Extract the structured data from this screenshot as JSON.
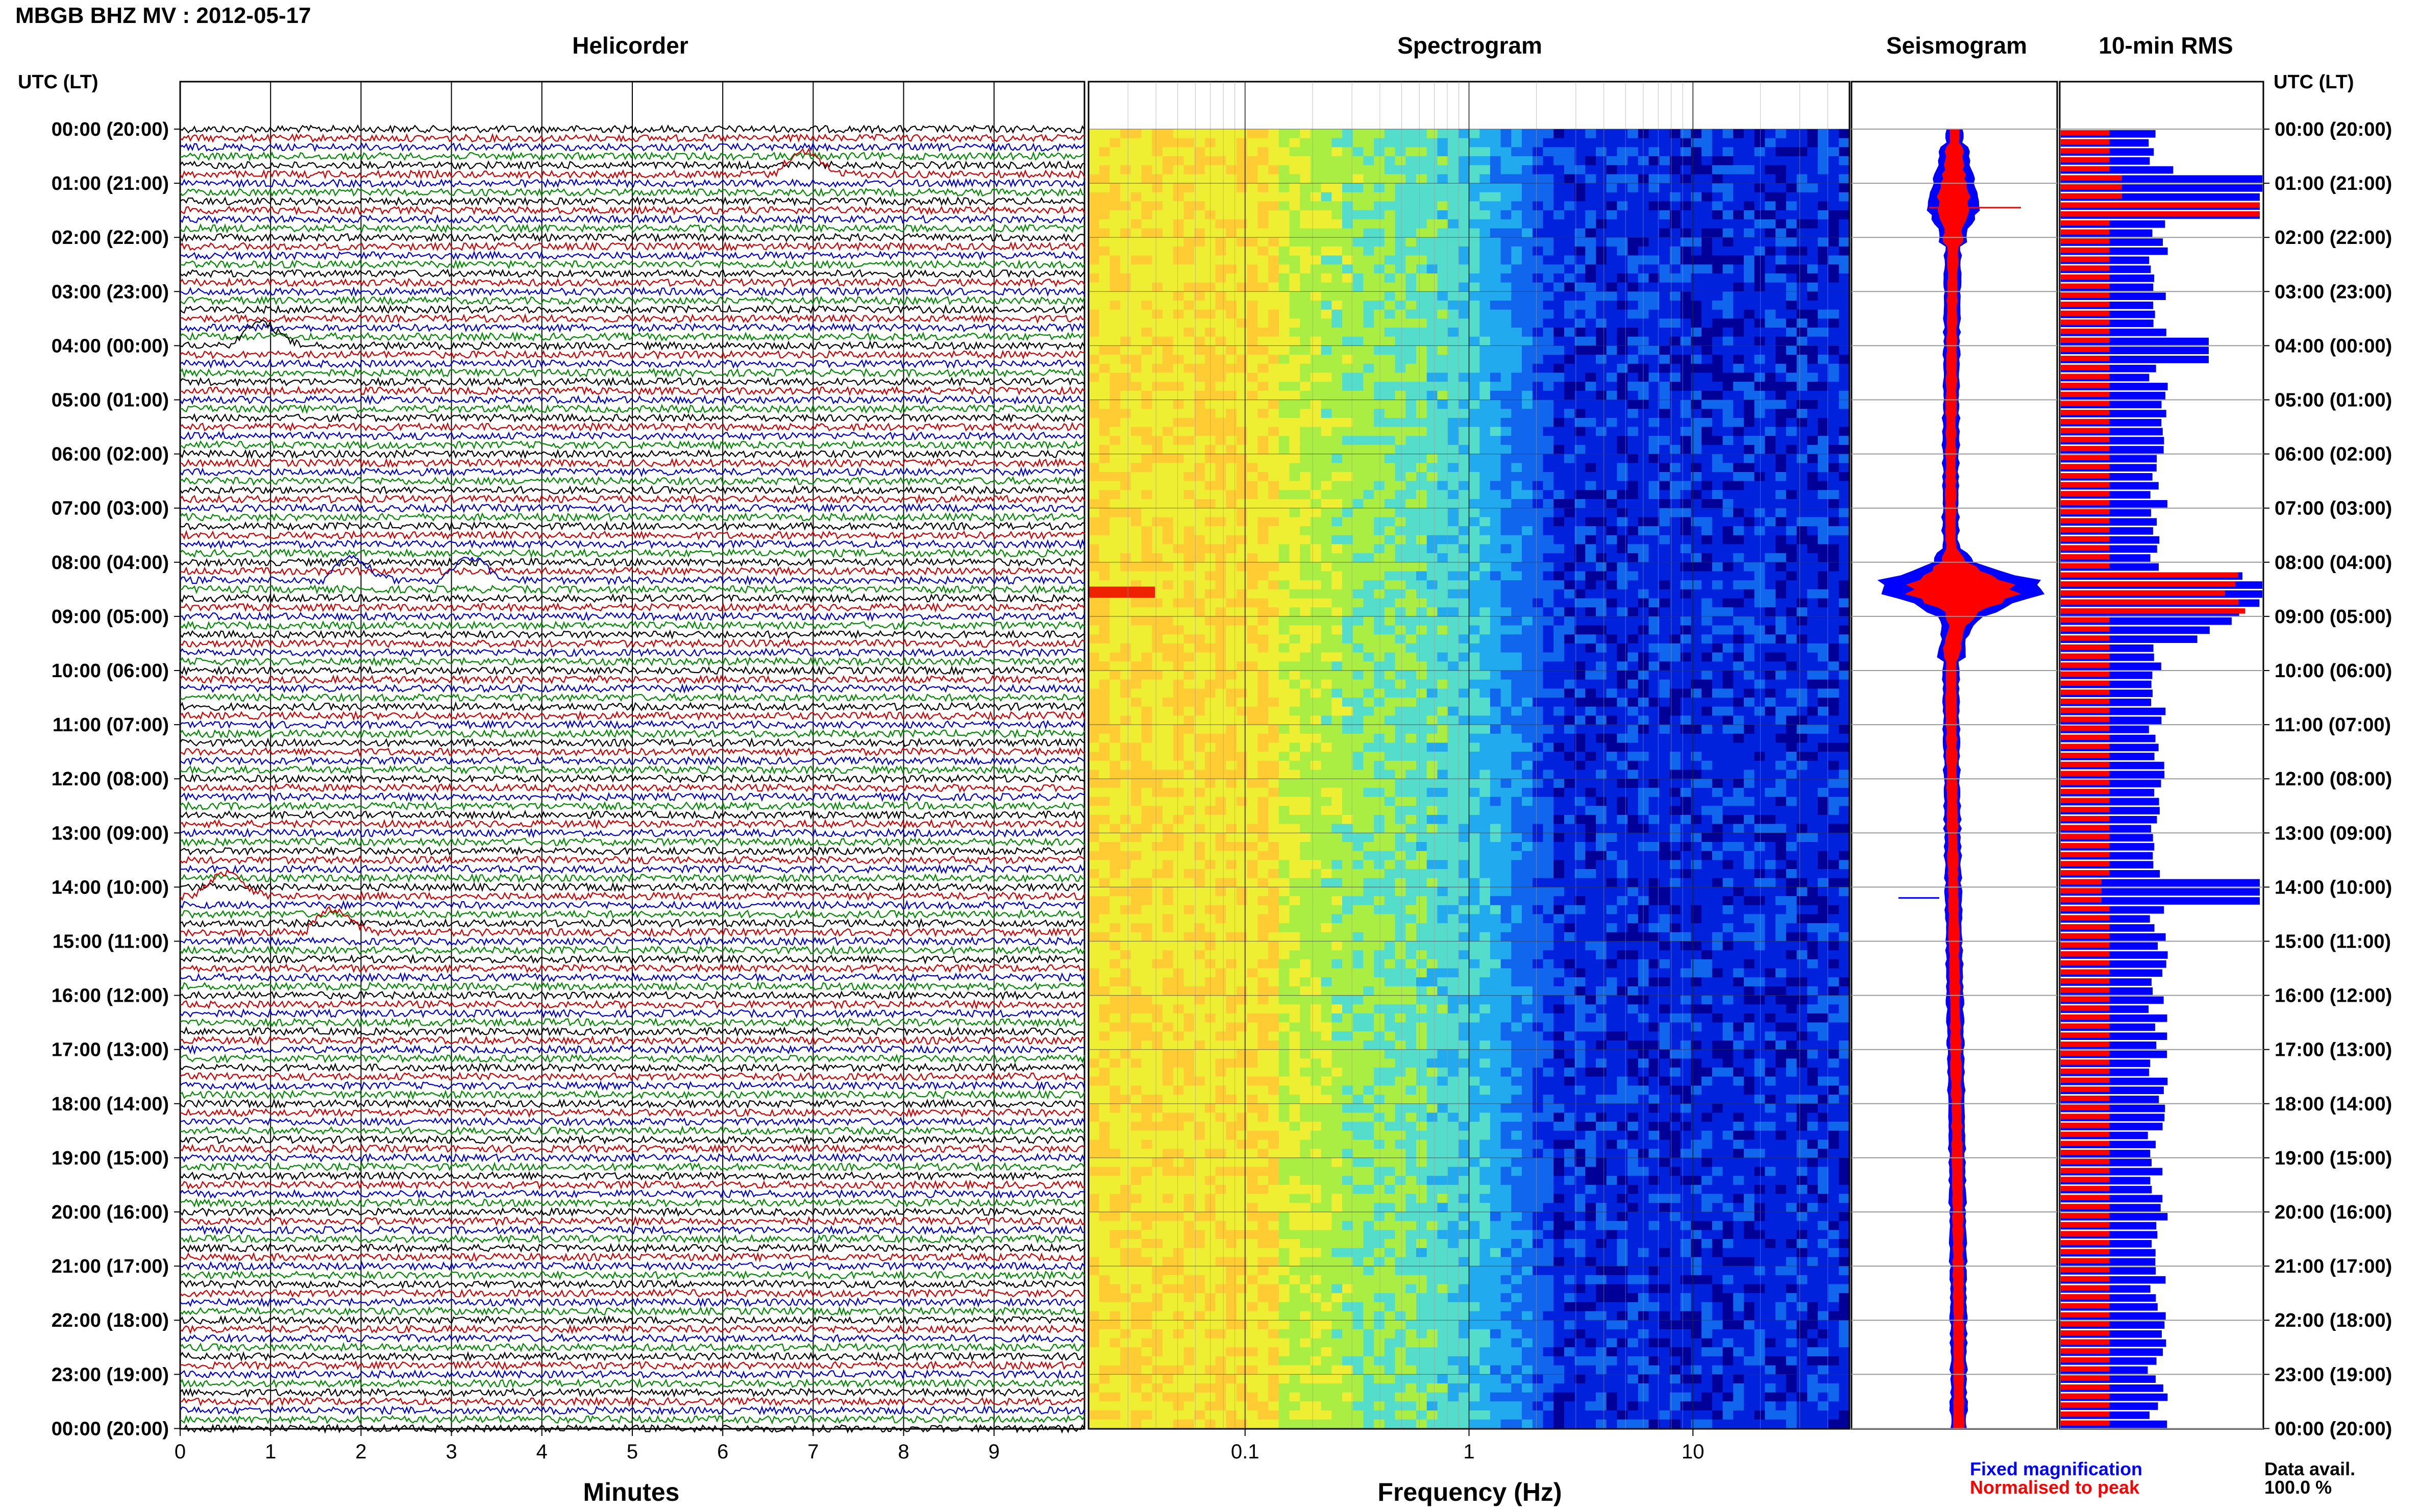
{
  "title": "MBGB BHZ MV : 2012-05-17",
  "panels": {
    "helicorder": "Helicorder",
    "spectrogram": "Spectrogram",
    "seismogram": "Seismogram",
    "rms": "10-min RMS"
  },
  "time_header": "UTC (LT)",
  "axes": {
    "helicorder_xlabel": "Minutes",
    "spectrogram_xlabel": "Frequency (Hz)"
  },
  "legend": {
    "fixed": "Fixed magnification",
    "normalised": "Normalised to peak",
    "fixed_color": "#0000ff",
    "normalised_color": "#ff0000"
  },
  "data_avail": {
    "label": "Data avail.",
    "value": "100.0 %"
  },
  "chart_data": [
    {
      "type": "line",
      "name": "helicorder",
      "xlabel": "Minutes",
      "x_ticks": [
        "0",
        "1",
        "2",
        "3",
        "4",
        "5",
        "6",
        "7",
        "8",
        "9"
      ],
      "xlim": [
        0,
        10
      ],
      "time_labels": [
        "00:00 (20:00)",
        "01:00 (21:00)",
        "02:00 (22:00)",
        "03:00 (23:00)",
        "04:00 (00:00)",
        "05:00 (01:00)",
        "06:00 (02:00)",
        "07:00 (03:00)",
        "08:00 (04:00)",
        "09:00 (05:00)",
        "10:00 (06:00)",
        "11:00 (07:00)",
        "12:00 (08:00)",
        "13:00 (09:00)",
        "14:00 (10:00)",
        "15:00 (11:00)",
        "16:00 (12:00)",
        "17:00 (13:00)",
        "18:00 (14:00)",
        "19:00 (15:00)",
        "20:00 (16:00)",
        "21:00 (17:00)",
        "22:00 (18:00)",
        "23:00 (19:00)",
        "00:00 (20:00)"
      ],
      "trace_colors": [
        "#000000",
        "#cc0000",
        "#0000cc",
        "#008800"
      ],
      "traces_per_hour": 6,
      "notable_events": [
        {
          "hour": 0.9,
          "minute": 6.9
        },
        {
          "hour": 4.0,
          "minute": 0.9
        },
        {
          "hour": 8.3,
          "minute": 3.2
        },
        {
          "hour": 8.3,
          "minute": 1.9
        },
        {
          "hour": 14.2,
          "minute": 0.5
        },
        {
          "hour": 14.9,
          "minute": 1.7
        }
      ]
    },
    {
      "type": "heatmap",
      "name": "spectrogram",
      "xlabel": "Frequency (Hz)",
      "x_scale": "log",
      "x_ticks": [
        "0.1",
        "1",
        "10"
      ],
      "xlim": [
        0.02,
        50
      ],
      "colormap": [
        "#ffcc33",
        "#eeee33",
        "#aaee44",
        "#55ddcc",
        "#22aaee",
        "#1166ee",
        "#0022dd",
        "#000099"
      ]
    },
    {
      "type": "line",
      "name": "seismogram",
      "series": [
        {
          "name": "Fixed magnification",
          "color": "#0000ff"
        },
        {
          "name": "Normalised to peak",
          "color": "#ff0000"
        }
      ]
    },
    {
      "type": "bar",
      "name": "10-min RMS",
      "series": [
        {
          "name": "Fixed magnification",
          "color": "#0000ff"
        },
        {
          "name": "Normalised to peak",
          "color": "#ff0000"
        }
      ]
    }
  ]
}
